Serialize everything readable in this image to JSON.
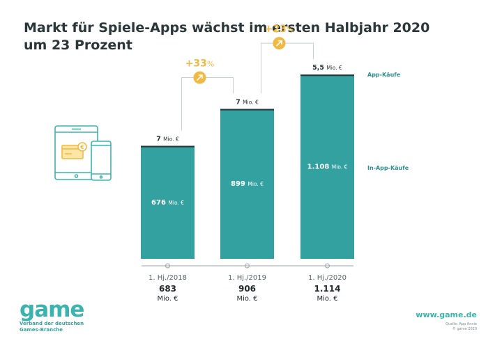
{
  "title_lines": [
    "Markt für Spiele-Apps wächst im ersten Halbjahr 2020",
    "um 23 Prozent"
  ],
  "chart_data": {
    "type": "bar",
    "stacked": true,
    "categories": [
      "1. Hj./2018",
      "1. Hj./2019",
      "1. Hj./2020"
    ],
    "series": [
      {
        "name": "In-App-Käufe",
        "values": [
          676,
          899,
          1108
        ],
        "labels": [
          "676",
          "899",
          "1.108"
        ]
      },
      {
        "name": "App-Käufe",
        "values": [
          7,
          7,
          5.5
        ],
        "labels": [
          "7",
          "7",
          "5,5"
        ]
      }
    ],
    "totals": {
      "values": [
        683,
        906,
        1114
      ],
      "labels": [
        "683",
        "906",
        "1.114"
      ]
    },
    "unit": "Mio. €",
    "growth": [
      {
        "from": 0,
        "to": 1,
        "label": "+33",
        "pct": "%"
      },
      {
        "from": 1,
        "to": 2,
        "label": "+23",
        "pct": "%"
      }
    ],
    "ylim": [
      0,
      1114
    ],
    "colors": {
      "in_app": "#33a19f",
      "app": "#243a3c",
      "growth": "#f2b942",
      "legend": "#2e8d8e"
    }
  },
  "brand": {
    "logo": "game",
    "tagline": [
      "Verband der deutschen",
      "Games-Branche"
    ],
    "website": "www.game.de",
    "credits": [
      "Quelle: App Annie",
      "© game 2020"
    ]
  }
}
